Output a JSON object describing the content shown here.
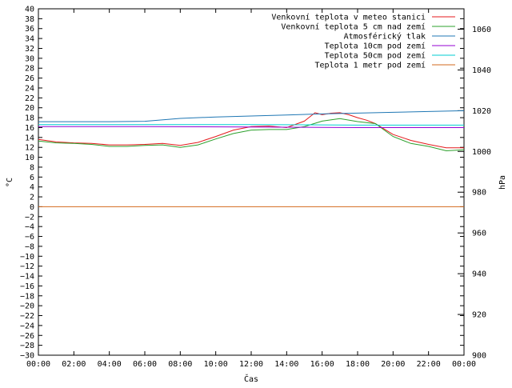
{
  "chart_data": {
    "type": "line",
    "title": "",
    "xlabel": "Čas",
    "ylabel": "°C",
    "y2label": "hPa",
    "x_ticks": [
      "00:00",
      "02:00",
      "04:00",
      "06:00",
      "08:00",
      "10:00",
      "12:00",
      "14:00",
      "16:00",
      "18:00",
      "20:00",
      "22:00",
      "00:00"
    ],
    "x_range_hours": [
      0,
      24
    ],
    "ylim": [
      -30,
      40
    ],
    "y_ticks_step": 2,
    "y2lim": [
      900,
      1070
    ],
    "y2_ticks": [
      900,
      920,
      940,
      960,
      980,
      1000,
      1020,
      1040,
      1060
    ],
    "grid": false,
    "legend_position": "top-right",
    "series": [
      {
        "name": "Venkovní teplota v meteo stanici",
        "color": "#e41a1c",
        "axis": "left",
        "points": [
          [
            0,
            13.6
          ],
          [
            1,
            13.1
          ],
          [
            2,
            12.9
          ],
          [
            3,
            12.8
          ],
          [
            4,
            12.5
          ],
          [
            5,
            12.5
          ],
          [
            6,
            12.6
          ],
          [
            7,
            12.8
          ],
          [
            8,
            12.4
          ],
          [
            9,
            13.0
          ],
          [
            10,
            14.2
          ],
          [
            11,
            15.5
          ],
          [
            12,
            16.2
          ],
          [
            13,
            16.3
          ],
          [
            14,
            16.0
          ],
          [
            15,
            17.3
          ],
          [
            15.6,
            19.0
          ],
          [
            16,
            18.6
          ],
          [
            16.5,
            18.9
          ],
          [
            17,
            19.0
          ],
          [
            17.5,
            18.6
          ],
          [
            18,
            18.0
          ],
          [
            18.5,
            17.5
          ],
          [
            19,
            16.8
          ],
          [
            20,
            14.6
          ],
          [
            21,
            13.4
          ],
          [
            22,
            12.6
          ],
          [
            23,
            11.9
          ],
          [
            24,
            11.9
          ]
        ]
      },
      {
        "name": "Venkovní teplota 5 cm nad zemí",
        "color": "#2ca02c",
        "axis": "left",
        "points": [
          [
            0,
            13.3
          ],
          [
            1,
            12.9
          ],
          [
            2,
            12.8
          ],
          [
            3,
            12.6
          ],
          [
            4,
            12.2
          ],
          [
            5,
            12.2
          ],
          [
            6,
            12.4
          ],
          [
            7,
            12.5
          ],
          [
            8,
            12.0
          ],
          [
            9,
            12.5
          ],
          [
            10,
            13.7
          ],
          [
            11,
            14.8
          ],
          [
            12,
            15.5
          ],
          [
            13,
            15.6
          ],
          [
            14,
            15.6
          ],
          [
            15,
            16.2
          ],
          [
            16,
            17.3
          ],
          [
            17,
            17.8
          ],
          [
            18,
            17.2
          ],
          [
            19,
            16.8
          ],
          [
            20,
            14.2
          ],
          [
            21,
            12.8
          ],
          [
            22,
            12.2
          ],
          [
            23,
            11.3
          ],
          [
            24,
            11.5
          ]
        ]
      },
      {
        "name": "Atmosférický tlak",
        "color": "#1f77b4",
        "axis": "right",
        "points": [
          [
            0,
            1014.6
          ],
          [
            2,
            1014.6
          ],
          [
            4,
            1014.6
          ],
          [
            6,
            1014.8
          ],
          [
            8,
            1016.2
          ],
          [
            10,
            1016.9
          ],
          [
            12,
            1017.4
          ],
          [
            14,
            1017.9
          ],
          [
            16,
            1018.4
          ],
          [
            18,
            1018.8
          ],
          [
            20,
            1019.2
          ],
          [
            22,
            1019.6
          ],
          [
            24,
            1020.0
          ]
        ]
      },
      {
        "name": "Teplota 10cm pod zemí",
        "color": "#9400d3",
        "axis": "left",
        "points": [
          [
            0,
            16.2
          ],
          [
            6,
            16.2
          ],
          [
            12,
            16.1
          ],
          [
            18,
            16.0
          ],
          [
            24,
            16.0
          ]
        ]
      },
      {
        "name": "Teplota 50cm pod zemí",
        "color": "#00ced1",
        "axis": "left",
        "points": [
          [
            0,
            16.6
          ],
          [
            6,
            16.6
          ],
          [
            12,
            16.6
          ],
          [
            18,
            16.5
          ],
          [
            24,
            16.5
          ]
        ]
      },
      {
        "name": "Teplota 1 metr pod zemí",
        "color": "#d2691e",
        "axis": "left",
        "points": [
          [
            0,
            0
          ],
          [
            24,
            0
          ]
        ]
      }
    ]
  }
}
